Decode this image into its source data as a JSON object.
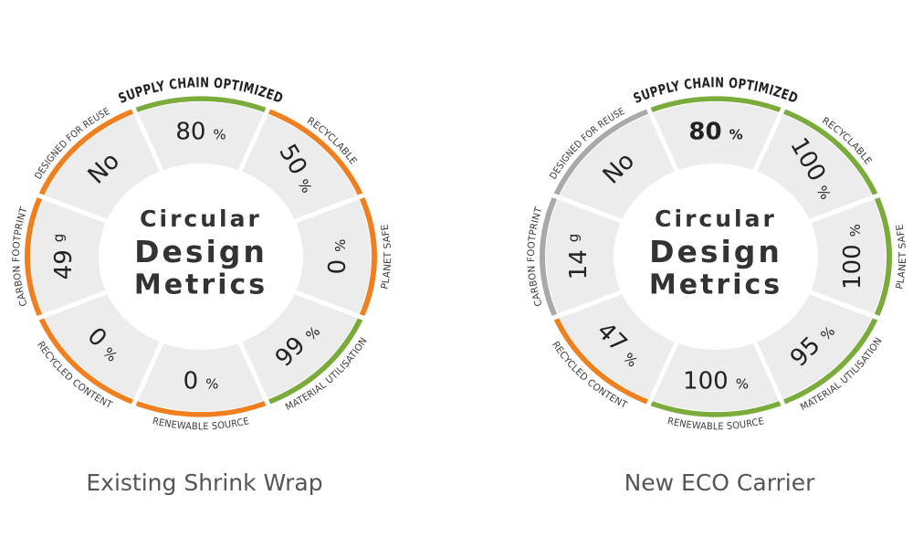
{
  "colors": {
    "good": "#7aab3b",
    "bad": "#f07f1f",
    "neutral": "#a9a9a9",
    "segment": "#ececec",
    "text": "#333333"
  },
  "wheels": [
    {
      "caption": "Existing Shrink Wrap",
      "center_title": [
        "Circular",
        "Design",
        "Metrics"
      ],
      "segments": [
        {
          "label": "SUPPLY CHAIN OPTIMIZED",
          "value": "80",
          "unit": "%",
          "status": "good"
        },
        {
          "label": "RECYCLABLE",
          "value": "50",
          "unit": "%",
          "status": "bad"
        },
        {
          "label": "PLANET SAFE",
          "value": "0",
          "unit": "%",
          "status": "bad"
        },
        {
          "label": "MATERIAL UTILISATION",
          "value": "99",
          "unit": "%",
          "status": "good"
        },
        {
          "label": "RENEWABLE SOURCE",
          "value": "0",
          "unit": "%",
          "status": "bad"
        },
        {
          "label": "RECYCLED CONTENT",
          "value": "0",
          "unit": "%",
          "status": "bad"
        },
        {
          "label": "CARBON FOOTPRINT",
          "value": "49",
          "unit": "g",
          "status": "bad"
        },
        {
          "label": "DESIGNED FOR REUSE",
          "value": "No",
          "unit": "",
          "status": "bad"
        }
      ]
    },
    {
      "caption": "New ECO Carrier",
      "center_title": [
        "Circular",
        "Design",
        "Metrics"
      ],
      "segments": [
        {
          "label": "SUPPLY CHAIN OPTIMIZED",
          "value": "80",
          "unit": "%",
          "status": "good",
          "emphasis": true
        },
        {
          "label": "RECYCLABLE",
          "value": "100",
          "unit": "%",
          "status": "good"
        },
        {
          "label": "PLANET SAFE",
          "value": "100",
          "unit": "%",
          "status": "good"
        },
        {
          "label": "MATERIAL UTILISATION",
          "value": "95",
          "unit": "%",
          "status": "good"
        },
        {
          "label": "RENEWABLE SOURCE",
          "value": "100",
          "unit": "%",
          "status": "good"
        },
        {
          "label": "RECYCLED CONTENT",
          "value": "47",
          "unit": "%",
          "status": "bad"
        },
        {
          "label": "CARBON FOOTPRINT",
          "value": "14",
          "unit": "g",
          "status": "neutral"
        },
        {
          "label": "DESIGNED FOR REUSE",
          "value": "No",
          "unit": "",
          "status": "neutral"
        }
      ]
    }
  ]
}
